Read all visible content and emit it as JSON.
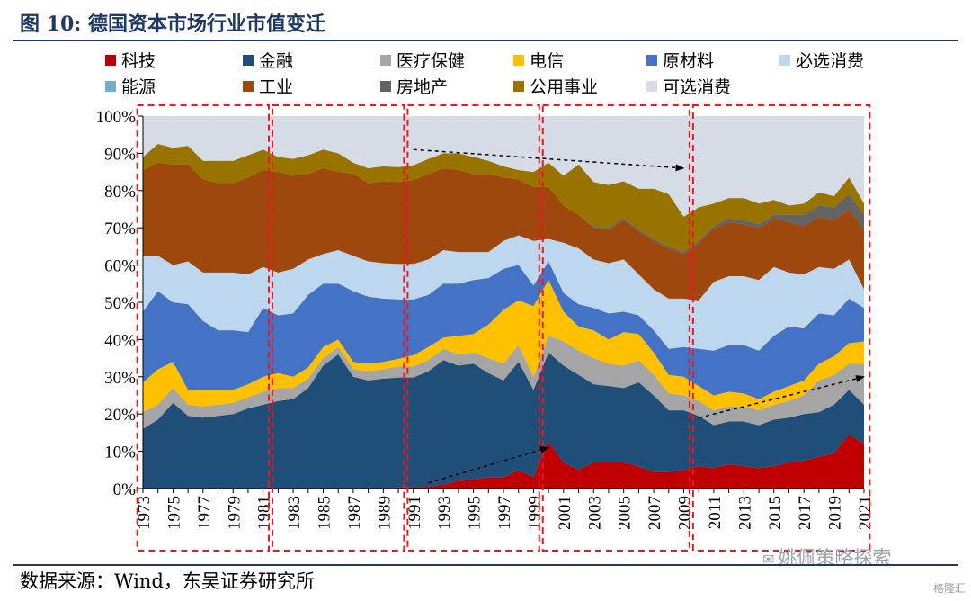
{
  "header": {
    "title": "图 10:  德国资本市场行业市值变迁"
  },
  "footer": {
    "source": "数据来源：Wind，东吴证券研究所"
  },
  "watermark": {
    "icon": "wechat-icon",
    "text": "姚佩策略探索"
  },
  "corner_badge": {
    "text": "格隆汇"
  },
  "colors": {
    "科技": "#c00000",
    "金融": "#1f4e79",
    "医疗保健": "#a5a5a5",
    "电信": "#ffc000",
    "原材料": "#4472c4",
    "必选消费": "#bdd7ee",
    "能源": "#70add0",
    "工业": "#9e480e",
    "房地产": "#636363",
    "公用事业": "#997300",
    "可选消费": "#d6dce5",
    "highlight_box": "#e8191f",
    "trend_arrow": "#000000"
  },
  "chart_data": {
    "type": "area",
    "stacked": true,
    "ylim": [
      0,
      100
    ],
    "y_ticks": [
      "0%",
      "10%",
      "20%",
      "30%",
      "40%",
      "50%",
      "60%",
      "70%",
      "80%",
      "90%",
      "100%"
    ],
    "x_tick_labels": [
      "1973",
      "1975",
      "1977",
      "1979",
      "1981",
      "1983",
      "1985",
      "1987",
      "1989",
      "1991",
      "1993",
      "1995",
      "1997",
      "1999",
      "2001",
      "2003",
      "2005",
      "2007",
      "2009",
      "2011",
      "2013",
      "2015",
      "2017",
      "2019",
      "2021"
    ],
    "legend_rows": [
      [
        "科技",
        "金融",
        "医疗保健",
        "电信",
        "原材料",
        "必选消费"
      ],
      [
        "能源",
        "工业",
        "房地产",
        "公用事业",
        "可选消费"
      ]
    ],
    "highlight_periods": [
      [
        1973,
        1981
      ],
      [
        1982,
        1990
      ],
      [
        1991,
        1999
      ],
      [
        2000,
        2009
      ],
      [
        2010,
        2021
      ]
    ],
    "trend_arrows": [
      {
        "from": [
          1991,
          91
        ],
        "to": [
          2009,
          86
        ]
      },
      {
        "from": [
          1992,
          1.5
        ],
        "to": [
          2000,
          11
        ]
      },
      {
        "from": [
          2010,
          19
        ],
        "to": [
          2021,
          30
        ]
      }
    ],
    "x": [
      1973,
      1974,
      1975,
      1976,
      1977,
      1978,
      1979,
      1980,
      1981,
      1982,
      1983,
      1984,
      1985,
      1986,
      1987,
      1988,
      1989,
      1990,
      1991,
      1992,
      1993,
      1994,
      1995,
      1996,
      1997,
      1998,
      1999,
      2000,
      2001,
      2002,
      2003,
      2004,
      2005,
      2006,
      2007,
      2008,
      2009,
      2010,
      2011,
      2012,
      2013,
      2014,
      2015,
      2016,
      2017,
      2018,
      2019,
      2020,
      2021
    ],
    "series": [
      {
        "name": "科技",
        "values": [
          0,
          0,
          0,
          0,
          0,
          0,
          0,
          0,
          0,
          0,
          0,
          0,
          0,
          0,
          0,
          0,
          0,
          0.3,
          0.3,
          0.5,
          1,
          2,
          2.5,
          3,
          3,
          5,
          3,
          12.5,
          7,
          5,
          7,
          7,
          7,
          6,
          4.5,
          4.5,
          5,
          6,
          5.5,
          6.5,
          6,
          5.5,
          6,
          7,
          7.5,
          8.5,
          9.5,
          14.5,
          12
        ]
      },
      {
        "name": "金融",
        "values": [
          16,
          18.5,
          23,
          19.5,
          19,
          19.5,
          20,
          21.5,
          22.5,
          23.5,
          24,
          27,
          33,
          36,
          30,
          29,
          29.5,
          29.5,
          29.5,
          31,
          33.5,
          31,
          31,
          28,
          26,
          29,
          23.5,
          24,
          26,
          25.5,
          21,
          20.5,
          20,
          22.5,
          20.5,
          16.5,
          16,
          13.5,
          11.5,
          11.5,
          12,
          11.5,
          12.5,
          12,
          12.5,
          12,
          13,
          12,
          10.5
        ]
      },
      {
        "name": "医疗保健",
        "values": [
          4.5,
          4,
          4,
          3,
          3,
          3,
          3,
          3,
          3.5,
          3.5,
          3,
          2.5,
          2,
          2,
          2,
          2.5,
          2.5,
          3,
          3,
          3,
          3,
          3,
          3,
          4,
          4.5,
          4.5,
          3.5,
          4.5,
          6.5,
          6.5,
          7,
          6,
          6,
          6,
          5.5,
          4.5,
          4,
          4,
          4,
          4,
          4,
          4,
          4,
          4.5,
          5,
          8.5,
          8,
          7,
          11
        ]
      },
      {
        "name": "电信",
        "values": [
          8,
          9.5,
          7,
          4,
          4.5,
          4,
          3.5,
          3.5,
          4,
          4,
          3,
          3,
          3,
          2,
          2,
          2,
          2,
          2,
          3,
          3.5,
          3,
          5,
          5,
          9,
          14.5,
          12,
          19,
          15,
          8,
          6.5,
          7.5,
          6.5,
          9,
          7,
          6,
          5,
          5,
          4,
          4,
          4,
          3.5,
          3,
          3.5,
          4,
          4,
          4.5,
          5,
          5.5,
          6
        ]
      },
      {
        "name": "原材料",
        "values": [
          19,
          21,
          16,
          23,
          18.5,
          16,
          16,
          14,
          18.5,
          15.5,
          17,
          19.5,
          17,
          15,
          19,
          18,
          17,
          16,
          15,
          14,
          14.5,
          14,
          14.5,
          12.5,
          11,
          9.5,
          5.5,
          5,
          5,
          6,
          6,
          7,
          5.5,
          5,
          6,
          7,
          8,
          10,
          12,
          12.5,
          13,
          13,
          15,
          16,
          14,
          13.5,
          11,
          12,
          9
        ]
      },
      {
        "name": "必选消费",
        "values": [
          15,
          9.5,
          10,
          11.5,
          13,
          15.5,
          15.5,
          15.5,
          11,
          11.5,
          12,
          9.5,
          8,
          9,
          9.5,
          9.5,
          9.5,
          9.5,
          9.5,
          9.5,
          9,
          8.5,
          7.5,
          7,
          7.5,
          8,
          12,
          6,
          13.5,
          15,
          13,
          13.5,
          14,
          11,
          11,
          13.5,
          13,
          13,
          18.5,
          18.5,
          18.5,
          19,
          18.5,
          14.5,
          14.5,
          12.5,
          12.5,
          10.5,
          5
        ]
      },
      {
        "name": "能源",
        "values": [
          0,
          0,
          0,
          0,
          0,
          0,
          0,
          0,
          0,
          0,
          0,
          0,
          0,
          0,
          0,
          0,
          0,
          0,
          0,
          0,
          0,
          0,
          0,
          0,
          0,
          0,
          0,
          0,
          0,
          0,
          0,
          0,
          0,
          0,
          0,
          0,
          0,
          0,
          0,
          0,
          0,
          0,
          0,
          0,
          0,
          0,
          0,
          0,
          0
        ]
      },
      {
        "name": "工业",
        "values": [
          23,
          25,
          27,
          26,
          25,
          24,
          24,
          26,
          26,
          27,
          25,
          23,
          23,
          21,
          22,
          21,
          22,
          22,
          22.5,
          23,
          22,
          22,
          21,
          21,
          17,
          15,
          14.5,
          14,
          10,
          9,
          8.5,
          9,
          10.5,
          11.5,
          13,
          13.5,
          12,
          15.5,
          14.5,
          14.5,
          14,
          14,
          13,
          13.5,
          13,
          13.5,
          13,
          13.5,
          16
        ]
      },
      {
        "name": "房地产",
        "values": [
          0,
          0,
          0,
          0,
          0,
          0,
          0,
          0,
          0,
          0,
          0,
          0,
          0,
          0,
          0,
          0,
          0,
          0,
          0,
          0,
          0,
          0,
          0,
          0,
          0,
          0,
          0,
          0,
          0,
          0,
          0.3,
          0.5,
          0.5,
          0.5,
          0.5,
          0.5,
          0.5,
          0.5,
          0.5,
          1,
          1,
          1,
          1,
          2,
          3,
          3,
          3.5,
          4,
          4
        ]
      },
      {
        "name": "公用事业",
        "values": [
          3.5,
          5,
          4.5,
          5,
          5,
          6,
          6,
          6,
          5.5,
          4,
          4.5,
          5,
          5,
          5,
          3,
          4,
          4,
          4,
          4,
          4,
          4,
          4.5,
          4.5,
          3.5,
          3,
          2.5,
          4,
          6.5,
          8,
          13.5,
          12,
          11.5,
          10,
          11,
          13.5,
          14,
          9.5,
          9,
          6,
          5.5,
          6,
          5.5,
          4,
          2.5,
          3,
          3.5,
          3,
          4.5,
          3
        ]
      },
      {
        "name": "可选消费",
        "values": [
          9,
          7.5,
          8.5,
          8,
          11,
          12,
          12,
          10.5,
          9,
          11,
          11.5,
          10.5,
          9,
          10,
          12.5,
          14,
          13.5,
          14,
          13.2,
          12,
          10,
          8,
          11,
          12,
          13.5,
          14.5,
          15,
          12.5,
          16,
          18,
          17.7,
          18.5,
          17.5,
          19.5,
          19.5,
          21,
          27,
          24.5,
          23.5,
          22,
          22,
          23.5,
          22.5,
          23.5,
          22.5,
          20.5,
          20.5,
          20.5,
          23
        ]
      }
    ]
  }
}
